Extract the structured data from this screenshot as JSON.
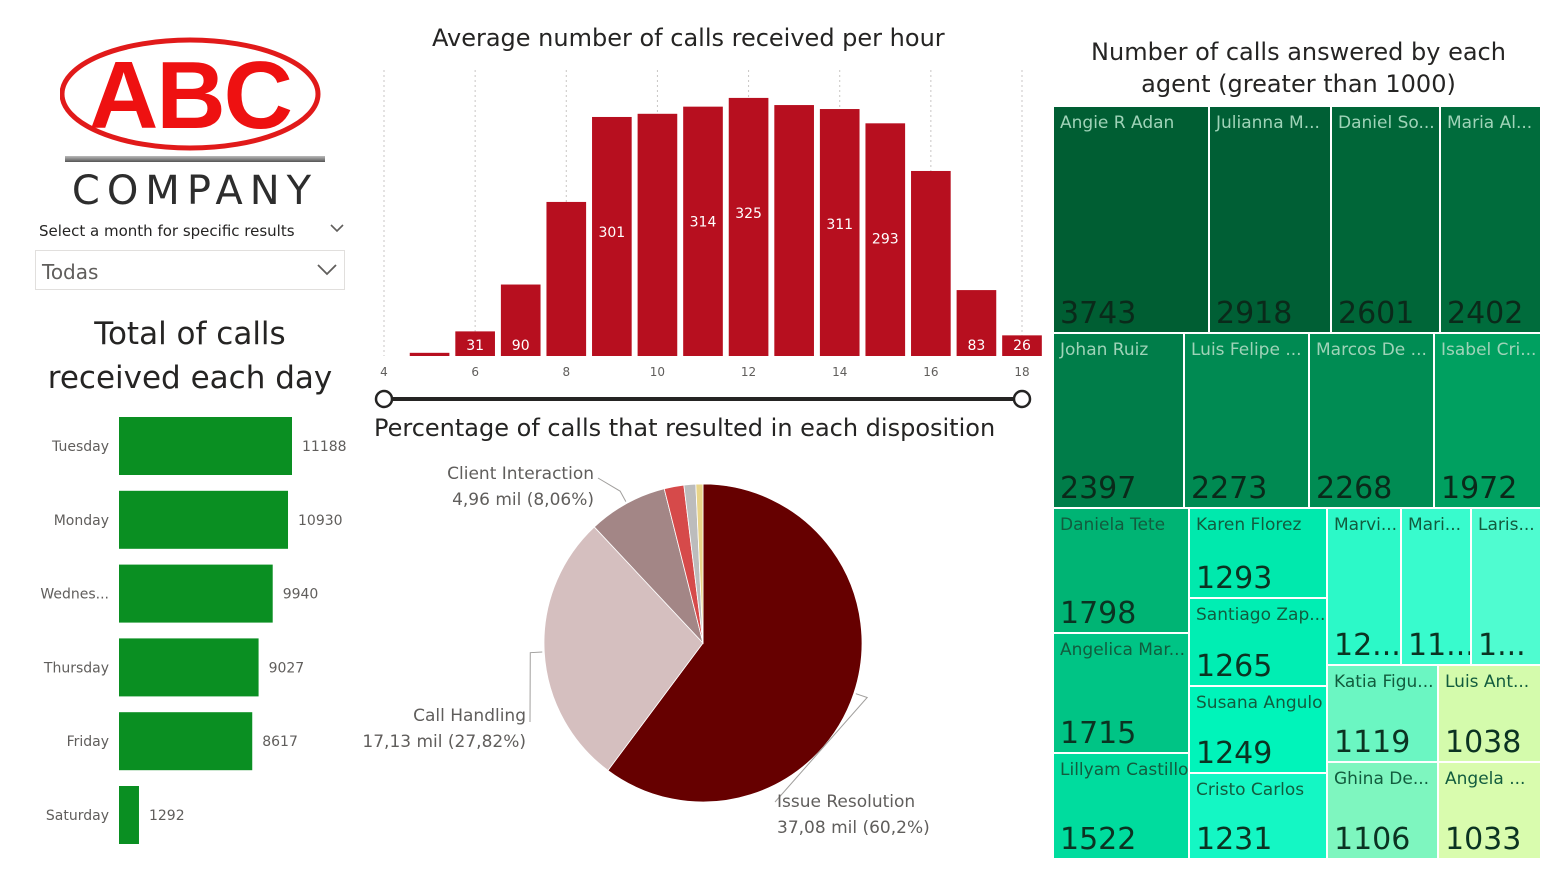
{
  "logo": {
    "brand": "ABC",
    "company": "COMPANY"
  },
  "slicer": {
    "title": "Select a month for specific results",
    "value": "Todas"
  },
  "colors": {
    "day_bar": "#0a8f22",
    "hour_bar": "#b70f1f",
    "pie": [
      "#660000",
      "#d5bfbf",
      "#a38686",
      "#d64a4a",
      "#bcbcbc",
      "#e8d48a"
    ]
  },
  "chart_data": [
    {
      "id": "calls_per_day",
      "type": "bar",
      "orientation": "horizontal",
      "title": "Total of calls received each day",
      "categories": [
        "Tuesday",
        "Monday",
        "Wednes...",
        "Thursday",
        "Friday",
        "Saturday"
      ],
      "values": [
        11188,
        10930,
        9940,
        9027,
        8617,
        1292
      ]
    },
    {
      "id": "calls_per_hour",
      "type": "bar",
      "title": "Average number of calls received per hour",
      "x": [
        5,
        6,
        7,
        8,
        9,
        10,
        11,
        12,
        13,
        14,
        15,
        16,
        17,
        18
      ],
      "values": [
        4,
        31,
        90,
        194,
        301,
        305,
        314,
        325,
        316,
        311,
        293,
        233,
        83,
        26
      ],
      "data_labels": {
        "6": "31",
        "7": "90",
        "9": "301",
        "11": "314",
        "12": "325",
        "14": "311",
        "15": "293",
        "17": "83",
        "18": "26"
      },
      "xticks": [
        4,
        6,
        8,
        10,
        12,
        14,
        16,
        18
      ],
      "xlim": [
        4,
        18
      ],
      "ylim": [
        0,
        340
      ],
      "grid": "vertical-dotted",
      "slider_range": [
        4,
        18
      ]
    },
    {
      "id": "disposition",
      "type": "pie",
      "title": "Percentage of calls that resulted in each disposition",
      "slices": [
        {
          "name": "Issue Resolution",
          "label": "37,08 mil (60,2%)",
          "pct": 60.2
        },
        {
          "name": "Call Handling",
          "label": "17,13 mil (27,82%)",
          "pct": 27.82
        },
        {
          "name": "Client Interaction",
          "label": "4,96 mil (8,06%)",
          "pct": 8.06
        },
        {
          "name": "",
          "label": "",
          "pct": 2.0
        },
        {
          "name": "",
          "label": "",
          "pct": 1.2
        },
        {
          "name": "",
          "label": "",
          "pct": 0.72
        }
      ]
    },
    {
      "id": "agents_treemap",
      "type": "treemap",
      "title": "Number of calls answered by each agent (greater than 1000)",
      "items": [
        {
          "name": "Angie R Adan",
          "value": "3743",
          "color": "#005e33"
        },
        {
          "name": "Julianna M...",
          "value": "2918",
          "color": "#005f35"
        },
        {
          "name": "Daniel So...",
          "value": "2601",
          "color": "#006638"
        },
        {
          "name": "Maria Al...",
          "value": "2402",
          "color": "#006c3c"
        },
        {
          "name": "Johan Ruiz",
          "value": "2397",
          "color": "#007d49"
        },
        {
          "name": "Luis Felipe ...",
          "value": "2273",
          "color": "#008a52"
        },
        {
          "name": "Marcos De ...",
          "value": "2268",
          "color": "#008c53"
        },
        {
          "name": "Isabel Cri...",
          "value": "1972",
          "color": "#00a060"
        },
        {
          "name": "Daniela Tete",
          "value": "1798",
          "color": "#00b474"
        },
        {
          "name": "Angelica Mar...",
          "value": "1715",
          "color": "#00c485"
        },
        {
          "name": "Lillyam Castillo",
          "value": "1522",
          "color": "#00dc9e"
        },
        {
          "name": "Karen Florez",
          "value": "1293",
          "color": "#00e9ad"
        },
        {
          "name": "Santiago Zap...",
          "value": "1265",
          "color": "#00eeb3"
        },
        {
          "name": "Susana Angulo",
          "value": "1249",
          "color": "#00f4ba"
        },
        {
          "name": "Cristo Carlos",
          "value": "1231",
          "color": "#14f7c4"
        },
        {
          "name": "Marvi...",
          "value": "12...",
          "color": "#2cf9c8"
        },
        {
          "name": "Mari...",
          "value": "11...",
          "color": "#38fbcd"
        },
        {
          "name": "Laris...",
          "value": "1...",
          "color": "#4ffcd0"
        },
        {
          "name": "Katia Figu...",
          "value": "1119",
          "color": "#6bf6c2"
        },
        {
          "name": "Luis Ant...",
          "value": "1038",
          "color": "#d4fbac"
        },
        {
          "name": "Ghina De...",
          "value": "1106",
          "color": "#7ef6bf"
        },
        {
          "name": "Angela ...",
          "value": "1033",
          "color": "#d9fcae"
        }
      ]
    }
  ]
}
